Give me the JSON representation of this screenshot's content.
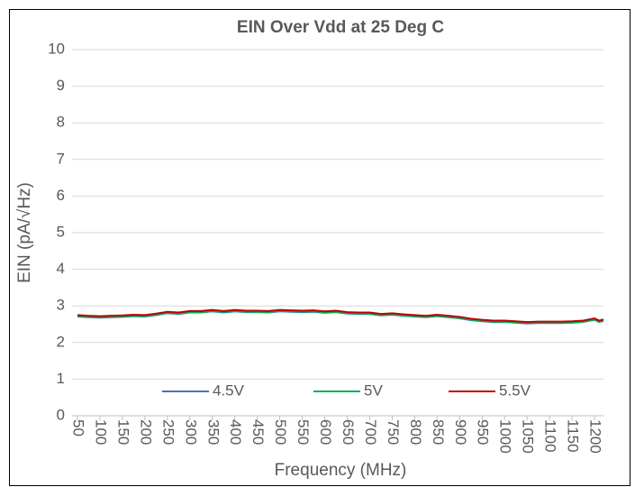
{
  "chart_data": {
    "type": "line",
    "title": "EIN Over Vdd at 25 Deg C",
    "x_label": "Frequency (MHz)",
    "y_label": "EIN (pA/√Hz)",
    "x": [
      50,
      75,
      100,
      125,
      150,
      175,
      200,
      225,
      250,
      275,
      300,
      325,
      350,
      375,
      400,
      425,
      450,
      475,
      500,
      525,
      550,
      575,
      600,
      625,
      650,
      675,
      700,
      725,
      750,
      775,
      800,
      825,
      850,
      875,
      900,
      925,
      950,
      975,
      1000,
      1025,
      1050,
      1075,
      1100,
      1125,
      1150,
      1175,
      1200,
      1210,
      1220
    ],
    "series": [
      {
        "name": "4.5V",
        "color": "#4472c4",
        "values": [
          2.71,
          2.69,
          2.68,
          2.69,
          2.7,
          2.72,
          2.71,
          2.75,
          2.8,
          2.78,
          2.82,
          2.82,
          2.85,
          2.82,
          2.85,
          2.83,
          2.83,
          2.82,
          2.85,
          2.84,
          2.83,
          2.84,
          2.81,
          2.83,
          2.79,
          2.78,
          2.78,
          2.74,
          2.76,
          2.73,
          2.71,
          2.69,
          2.72,
          2.69,
          2.66,
          2.61,
          2.58,
          2.56,
          2.56,
          2.54,
          2.52,
          2.53,
          2.53,
          2.53,
          2.54,
          2.56,
          2.62,
          2.56,
          2.59
        ]
      },
      {
        "name": "5V",
        "color": "#00b050",
        "values": [
          2.72,
          2.7,
          2.69,
          2.7,
          2.71,
          2.73,
          2.72,
          2.76,
          2.81,
          2.79,
          2.83,
          2.83,
          2.86,
          2.83,
          2.86,
          2.84,
          2.84,
          2.83,
          2.86,
          2.85,
          2.84,
          2.85,
          2.82,
          2.84,
          2.8,
          2.79,
          2.79,
          2.75,
          2.77,
          2.74,
          2.72,
          2.7,
          2.73,
          2.7,
          2.67,
          2.62,
          2.59,
          2.57,
          2.57,
          2.55,
          2.53,
          2.54,
          2.54,
          2.54,
          2.55,
          2.57,
          2.63,
          2.57,
          2.6
        ]
      },
      {
        "name": "5.5V",
        "color": "#c00000",
        "values": [
          2.75,
          2.73,
          2.72,
          2.73,
          2.74,
          2.76,
          2.75,
          2.79,
          2.84,
          2.82,
          2.86,
          2.86,
          2.89,
          2.86,
          2.89,
          2.87,
          2.87,
          2.86,
          2.89,
          2.88,
          2.87,
          2.88,
          2.85,
          2.87,
          2.83,
          2.82,
          2.82,
          2.78,
          2.8,
          2.77,
          2.75,
          2.73,
          2.76,
          2.73,
          2.7,
          2.65,
          2.62,
          2.6,
          2.6,
          2.58,
          2.56,
          2.57,
          2.57,
          2.57,
          2.58,
          2.6,
          2.66,
          2.6,
          2.63
        ]
      }
    ],
    "xlim": [
      50,
      1220
    ],
    "xticks": [
      50,
      100,
      150,
      200,
      250,
      300,
      350,
      400,
      450,
      500,
      550,
      600,
      650,
      700,
      750,
      800,
      850,
      900,
      950,
      1000,
      1050,
      1100,
      1150,
      1200
    ],
    "ylim": [
      0,
      10
    ],
    "yticks": [
      0,
      1,
      2,
      3,
      4,
      5,
      6,
      7,
      8,
      9,
      10
    ],
    "grid": true,
    "legend": "bottom"
  }
}
